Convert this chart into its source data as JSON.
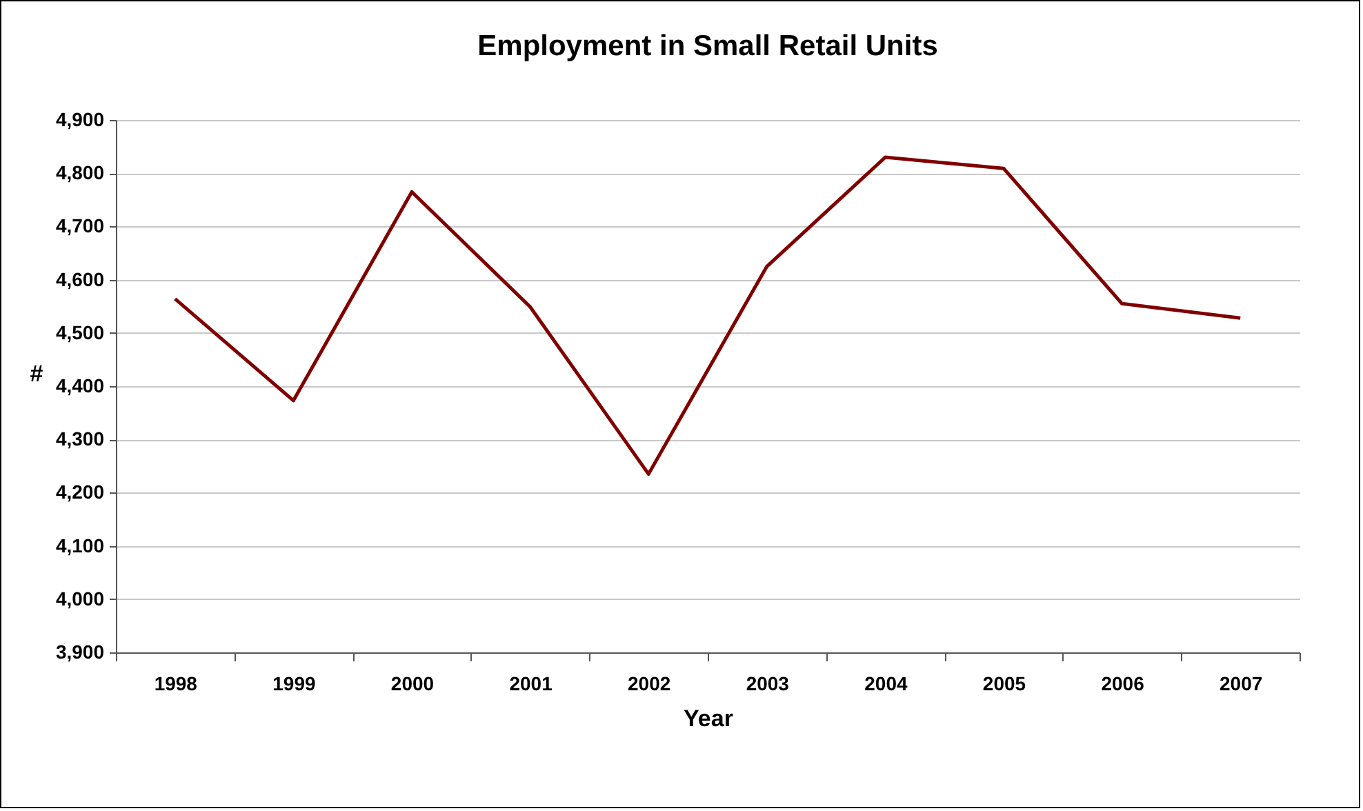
{
  "chart_data": {
    "type": "line",
    "title": "Employment in Small Retail Units",
    "xlabel": "Year",
    "ylabel": "#",
    "categories": [
      "1998",
      "1999",
      "2000",
      "2001",
      "2002",
      "2003",
      "2004",
      "2005",
      "2006",
      "2007"
    ],
    "series": [
      {
        "color": "#800000",
        "values": [
          4564,
          4373,
          4765,
          4549,
          4235,
          4625,
          4830,
          4809,
          4555,
          4528
        ]
      }
    ],
    "ylim": [
      3900,
      4900
    ],
    "yticks": [
      {
        "value": 3900,
        "label": "3,900"
      },
      {
        "value": 4000,
        "label": "4,000"
      },
      {
        "value": 4100,
        "label": "4,100"
      },
      {
        "value": 4200,
        "label": "4,200"
      },
      {
        "value": 4300,
        "label": "4,300"
      },
      {
        "value": 4400,
        "label": "4,400"
      },
      {
        "value": 4500,
        "label": "4,500"
      },
      {
        "value": 4600,
        "label": "4,600"
      },
      {
        "value": 4700,
        "label": "4,700"
      },
      {
        "value": 4800,
        "label": "4,800"
      },
      {
        "value": 4900,
        "label": "4,900"
      }
    ],
    "grid": "y",
    "legend": false,
    "marker": "none",
    "line_style": "solid"
  }
}
